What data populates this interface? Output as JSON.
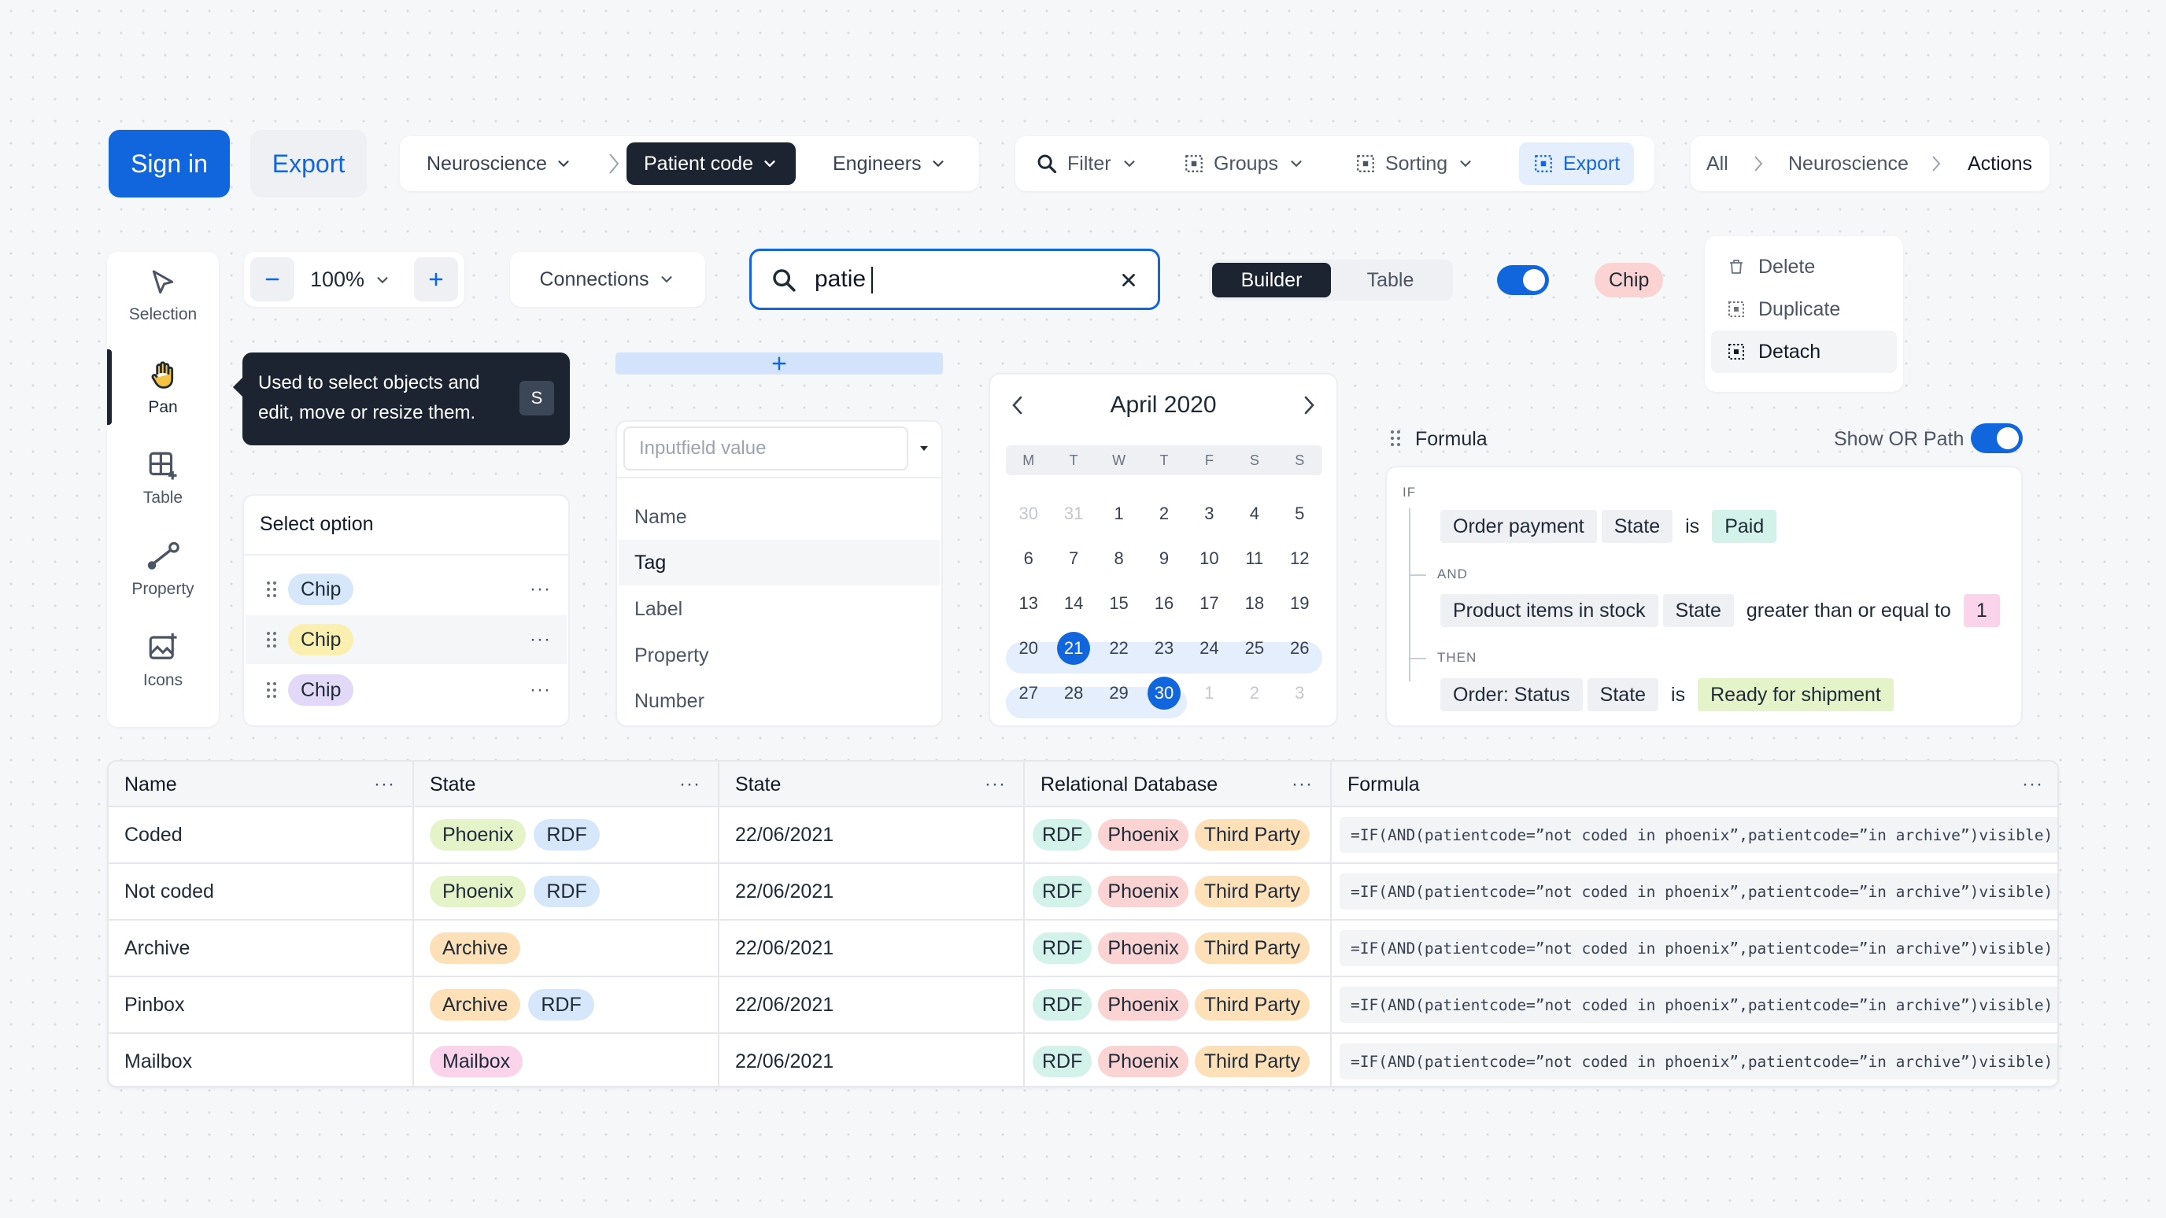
{
  "top": {
    "signin": "Sign in",
    "export": "Export",
    "breadcrumb1": [
      "Neuroscience",
      "Patient code",
      "Engineers"
    ],
    "toolbar": {
      "filter": "Filter",
      "groups": "Groups",
      "sorting": "Sorting",
      "export": "Export"
    },
    "breadcrumb2": [
      "All",
      "Neuroscience",
      "Actions"
    ]
  },
  "rail": [
    "Selection",
    "Pan",
    "Table",
    "Property",
    "Icons"
  ],
  "zoom": "100%",
  "connections": "Connections",
  "search": {
    "value": "patie"
  },
  "segment": [
    "Builder",
    "Table"
  ],
  "chip_red": "Chip",
  "menu": [
    "Delete",
    "Duplicate",
    "Detach"
  ],
  "tooltip": {
    "text": "Used to select objects and edit, move or resize them.",
    "key": "S"
  },
  "select_option": {
    "title": "Select option",
    "chips": [
      {
        "label": "Chip",
        "color": "#d6e7fb"
      },
      {
        "label": "Chip",
        "color": "#fbefb0"
      },
      {
        "label": "Chip",
        "color": "#e2d9f8"
      }
    ]
  },
  "dropdown": {
    "placeholder": "Inputfield value",
    "items": [
      "Name",
      "Tag",
      "Label",
      "Property",
      "Number"
    ]
  },
  "calendar": {
    "title": "April 2020",
    "dows": [
      "M",
      "T",
      "W",
      "T",
      "F",
      "S",
      "S"
    ],
    "days": [
      "30",
      "31",
      "1",
      "2",
      "3",
      "4",
      "5",
      "6",
      "7",
      "8",
      "9",
      "10",
      "11",
      "12",
      "13",
      "14",
      "15",
      "16",
      "17",
      "18",
      "19",
      "20",
      "21",
      "22",
      "23",
      "24",
      "25",
      "26",
      "27",
      "28",
      "29",
      "30",
      "1",
      "2",
      "3"
    ]
  },
  "formula": {
    "title": "Formula",
    "show_or": "Show OR Path",
    "kw_if": "IF",
    "kw_and": "AND",
    "kw_then": "THEN",
    "row1": {
      "a": "Order payment",
      "b": "State",
      "op": "is",
      "v": "Paid"
    },
    "row2": {
      "a": "Product items in stock",
      "b": "State",
      "op": "greater than or equal to",
      "v": "1"
    },
    "row3": {
      "a": "Order: Status",
      "b": "State",
      "op": "is",
      "v": "Ready for shipment"
    }
  },
  "table": {
    "headers": [
      "Name",
      "State",
      "State",
      "Relational Database",
      "Formula"
    ],
    "rows": [
      {
        "name": "Coded",
        "states": [
          "Phoenix",
          "RDF"
        ],
        "date": "22/06/2021",
        "rel": [
          "RDF",
          "Phoenix",
          "Third Party"
        ],
        "formula": "=IF(AND(patientcode=”not coded in phoenix”,patientcode=”in archive”)visible)"
      },
      {
        "name": "Not coded",
        "states": [
          "Phoenix",
          "RDF"
        ],
        "date": "22/06/2021",
        "rel": [
          "RDF",
          "Phoenix",
          "Third Party"
        ],
        "formula": "=IF(AND(patientcode=”not coded in phoenix”,patientcode=”in archive”)visible)"
      },
      {
        "name": "Archive",
        "states": [
          "Archive"
        ],
        "date": "22/06/2021",
        "rel": [
          "RDF",
          "Phoenix",
          "Third Party"
        ],
        "formula": "=IF(AND(patientcode=”not coded in phoenix”,patientcode=”in archive”)visible)"
      },
      {
        "name": "Pinbox",
        "states": [
          "Archive",
          "RDF"
        ],
        "date": "22/06/2021",
        "rel": [
          "RDF",
          "Phoenix",
          "Third Party"
        ],
        "formula": "=IF(AND(patientcode=”not coded in phoenix”,patientcode=”in archive”)visible)"
      },
      {
        "name": "Mailbox",
        "states": [
          "Mailbox"
        ],
        "date": "22/06/2021",
        "rel": [
          "RDF",
          "Phoenix",
          "Third Party"
        ],
        "formula": "=IF(AND(patientcode=”not coded in phoenix”,patientcode=”in archive”)visible)"
      }
    ]
  },
  "chip_colors": {
    "Phoenix": "#e4f4c8",
    "RDF": "#d6e7fb",
    "Archive": "#fde0b8",
    "Mailbox": "#fbd3ea",
    "RDF_rel": "#d3f2ea",
    "Phoenix_rel": "#fbd3d3",
    "Third Party": "#fde0b8"
  },
  "colors": {
    "accent": "#1266dd",
    "dark": "#1b2430"
  }
}
